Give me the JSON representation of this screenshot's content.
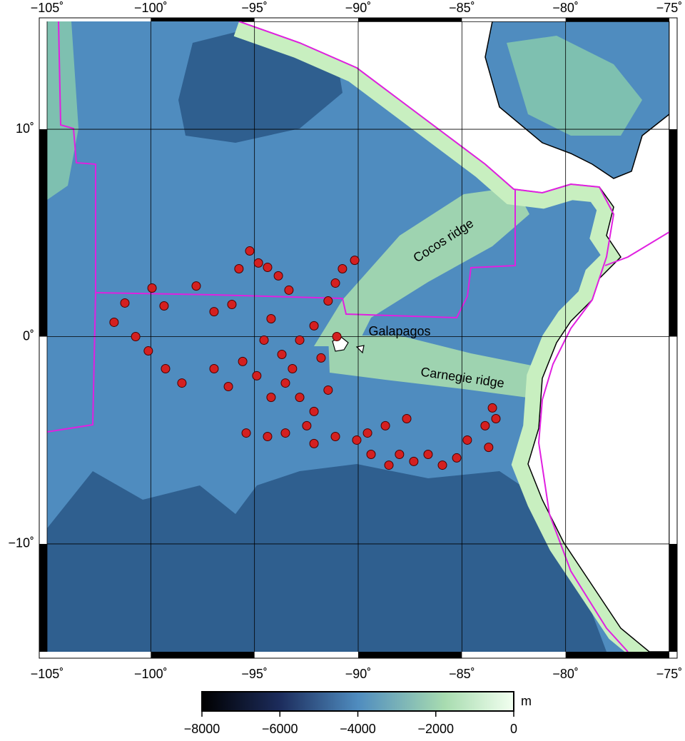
{
  "chart_data": {
    "type": "map",
    "xlim": [
      -105,
      -75
    ],
    "ylim": [
      -15.2,
      15.2
    ],
    "xticks": [
      {
        "value": -105,
        "label": "−105˚"
      },
      {
        "value": -100,
        "label": "−100˚"
      },
      {
        "value": -95,
        "label": "−95˚"
      },
      {
        "value": -90,
        "label": "−90˚"
      },
      {
        "value": -85,
        "label": "−85˚"
      },
      {
        "value": -80,
        "label": "−80˚"
      },
      {
        "value": -75,
        "label": "−75˚"
      }
    ],
    "yticks": [
      {
        "value": -10,
        "label": "−10˚"
      },
      {
        "value": 0,
        "label": "0˚"
      },
      {
        "value": 10,
        "label": "10˚"
      }
    ],
    "grid": true,
    "annotations": [
      "Cocos ridge",
      "Galapagos",
      "Carnegie ridge"
    ],
    "points": {
      "color": "#d42020",
      "lon": [
        -101.77,
        -101.25,
        -99.94,
        -99.36,
        -100.73,
        -100.12,
        -99.29,
        -98.5,
        -97.81,
        -96.95,
        -96.09,
        -95.23,
        -94.81,
        -95.75,
        -94.37,
        -93.85,
        -93.34,
        -94.2,
        -94.54,
        -93.68,
        -92.82,
        -92.13,
        -91.45,
        -91.1,
        -90.76,
        -90.17,
        -96.95,
        -96.26,
        -95.57,
        -94.89,
        -94.2,
        -93.51,
        -92.82,
        -92.13,
        -91.45,
        -92.48,
        -93.51,
        -94.37,
        -95.4,
        -92.13,
        -91.1,
        -90.07,
        -89.38,
        -88.69,
        -87.66,
        -88.01,
        -87.32,
        -86.63,
        -85.94,
        -85.25,
        -84.74,
        -83.88,
        -83.53,
        -83.36,
        -83.71,
        -88.52,
        -89.55,
        -91.79,
        -93.17,
        -91.03
      ],
      "lat": [
        0.69,
        1.62,
        2.34,
        1.48,
        0,
        -0.69,
        -1.55,
        -2.24,
        2.44,
        1.2,
        1.55,
        4.13,
        3.55,
        3.27,
        3.34,
        2.93,
        2.24,
        0.86,
        -0.17,
        -0.86,
        -0.17,
        0.52,
        1.72,
        2.58,
        3.27,
        3.68,
        -1.55,
        -2.41,
        -1.2,
        -1.89,
        -2.93,
        -2.24,
        -2.93,
        -3.61,
        -2.58,
        -4.3,
        -4.65,
        -4.82,
        -4.65,
        -5.16,
        -4.82,
        -4.99,
        -5.68,
        -4.3,
        -3.96,
        -5.68,
        -6.02,
        -5.68,
        -6.2,
        -5.85,
        -4.99,
        -4.3,
        -3.44,
        -3.96,
        -5.34,
        -6.2,
        -4.65,
        -1.03,
        -1.55,
        0
      ]
    },
    "colorbar": {
      "unit": "m",
      "lim": [
        -8000,
        0
      ],
      "ticks": [
        {
          "value": -8000,
          "label": "−8000"
        },
        {
          "value": -6000,
          "label": "−6000"
        },
        {
          "value": -4000,
          "label": "−4000"
        },
        {
          "value": -2000,
          "label": "−2000"
        },
        0
      ]
    }
  }
}
